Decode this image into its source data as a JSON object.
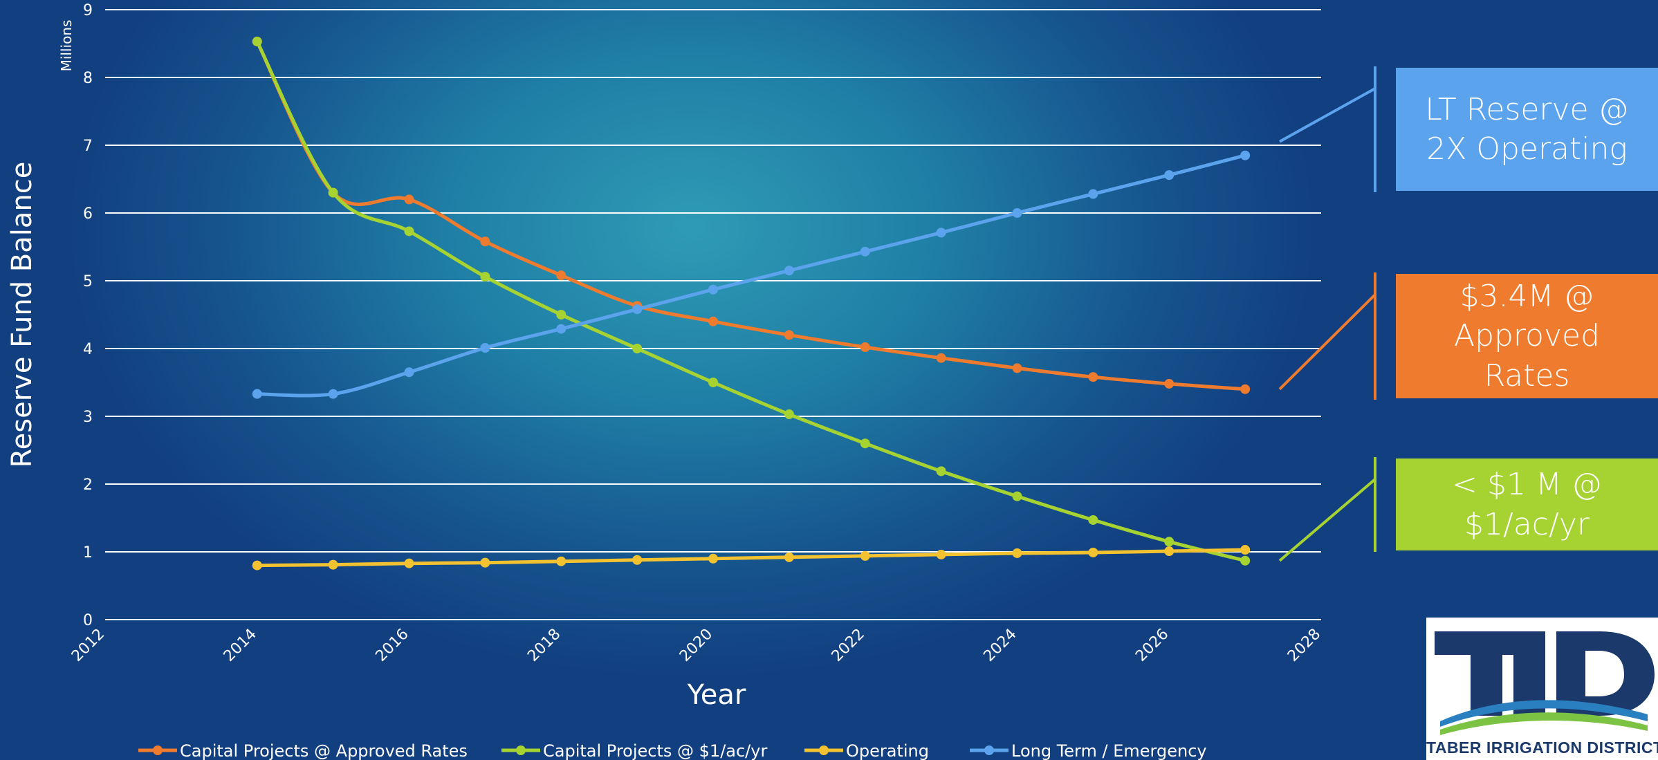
{
  "chart_data": {
    "type": "line",
    "title": "",
    "xlabel": "Year",
    "ylabel": "Reserve Fund Balance",
    "y_unit_label": "Millions",
    "xlim": [
      2012,
      2028
    ],
    "ylim": [
      0,
      9
    ],
    "x_ticks": [
      2012,
      2014,
      2016,
      2018,
      2020,
      2022,
      2024,
      2026,
      2028
    ],
    "y_ticks": [
      0,
      1,
      2,
      3,
      4,
      5,
      6,
      7,
      8,
      9
    ],
    "grid": "horizontal",
    "legend_position": "bottom",
    "x": [
      2014,
      2015,
      2016,
      2017,
      2018,
      2019,
      2020,
      2021,
      2022,
      2023,
      2024,
      2025,
      2026,
      2027
    ],
    "series": [
      {
        "name": "Capital Projects @ Approved Rates",
        "color": "#ee7b2e",
        "smooth": true,
        "values": [
          8.53,
          6.3,
          6.2,
          5.58,
          5.08,
          4.63,
          4.4,
          4.2,
          4.02,
          3.86,
          3.71,
          3.58,
          3.48,
          3.4
        ]
      },
      {
        "name": "Capital Projects @ $1/ac/yr",
        "color": "#a6d232",
        "smooth": true,
        "values": [
          8.53,
          6.3,
          5.73,
          5.06,
          4.5,
          4.0,
          3.5,
          3.03,
          2.6,
          2.19,
          1.82,
          1.47,
          1.15,
          0.87
        ]
      },
      {
        "name": "Operating",
        "color": "#f2c231",
        "smooth": false,
        "values": [
          0.8,
          0.81,
          0.83,
          0.84,
          0.86,
          0.88,
          0.9,
          0.92,
          0.94,
          0.96,
          0.98,
          0.99,
          1.01,
          1.03
        ]
      },
      {
        "name": "Long Term / Emergency",
        "color": "#5ba3ec",
        "smooth": true,
        "values": [
          3.33,
          3.33,
          3.65,
          4.01,
          4.29,
          4.58,
          4.87,
          5.15,
          5.43,
          5.71,
          6.0,
          6.28,
          6.56,
          6.85
        ]
      }
    ],
    "callouts": [
      {
        "text": "LT Reserve @\n2X Operating",
        "color": "#5ba3ec",
        "series": "Long Term / Emergency"
      },
      {
        "text": "$3.4M @\nApproved\nRates",
        "color": "#ee7b2e",
        "series": "Capital Projects @ Approved Rates"
      },
      {
        "text": "< $1 M @\n$1/ac/yr",
        "color": "#a6d232",
        "series": "Capital Projects @ $1/ac/yr"
      }
    ]
  },
  "logo": {
    "text": "TABER IRRIGATION DISTRICT",
    "mark": "TID",
    "colors": {
      "mark": "#1b3a6b",
      "swoosh_blue": "#2a7fc0",
      "swoosh_green": "#7cc243"
    }
  }
}
